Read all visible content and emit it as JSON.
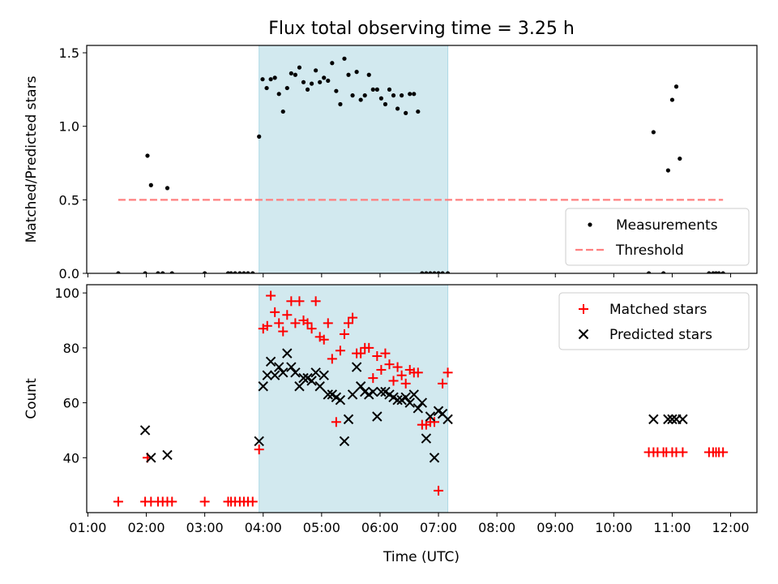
{
  "chart_data": {
    "type": "scatter",
    "title": "Flux total observing time = 3.25 h",
    "xlabel": "Time (UTC)",
    "xlim": [
      0.98,
      12.45
    ],
    "x_ticks": [
      1,
      2,
      3,
      4,
      5,
      6,
      7,
      8,
      9,
      10,
      11,
      12
    ],
    "x_tick_labels": [
      "01:00",
      "02:00",
      "03:00",
      "04:00",
      "05:00",
      "06:00",
      "07:00",
      "08:00",
      "09:00",
      "10:00",
      "11:00",
      "12:00"
    ],
    "observing_window": {
      "start": 3.93,
      "end": 7.16,
      "color": "#d2e9ef"
    },
    "panels": [
      {
        "ylabel": "Matched/Predicted stars",
        "ylim": [
          0,
          1.55
        ],
        "y_ticks": [
          0,
          0.5,
          1.0,
          1.5
        ],
        "y_tick_labels": [
          "0.0",
          "0.5",
          "1.0",
          "1.5"
        ],
        "legend": {
          "position": "bottom-right",
          "entries": [
            "Measurements",
            "Threshold"
          ]
        },
        "threshold": {
          "name": "Threshold",
          "value": 0.5,
          "x_range": [
            1.52,
            11.87
          ],
          "color": "#ff7f7f"
        },
        "series": [
          {
            "name": "Measurements",
            "marker": "dot",
            "color": "#000000",
            "x": [
              1.52,
              1.98,
              2.02,
              2.08,
              2.2,
              2.28,
              2.36,
              2.44,
              3.0,
              3.4,
              3.45,
              3.52,
              3.6,
              3.67,
              3.74,
              3.82,
              3.93,
              3.99,
              4.06,
              4.13,
              4.2,
              4.27,
              4.34,
              4.41,
              4.48,
              4.55,
              4.62,
              4.69,
              4.76,
              4.83,
              4.9,
              4.97,
              5.04,
              5.11,
              5.18,
              5.25,
              5.32,
              5.39,
              5.46,
              5.53,
              5.6,
              5.67,
              5.74,
              5.81,
              5.88,
              5.95,
              6.02,
              6.09,
              6.16,
              6.23,
              6.3,
              6.37,
              6.44,
              6.51,
              6.58,
              6.65,
              6.72,
              6.79,
              6.86,
              6.93,
              7.0,
              7.07,
              7.16,
              10.6,
              10.68,
              10.85,
              10.93,
              11.0,
              11.07,
              11.13,
              11.63,
              11.7,
              11.75,
              11.8,
              11.87
            ],
            "y": [
              0,
              0,
              0.8,
              0.6,
              0,
              0,
              0.58,
              0,
              0,
              0,
              0,
              0,
              0,
              0,
              0,
              0,
              0.93,
              1.32,
              1.26,
              1.32,
              1.33,
              1.22,
              1.1,
              1.26,
              1.36,
              1.35,
              1.4,
              1.3,
              1.25,
              1.29,
              1.38,
              1.3,
              1.33,
              1.31,
              1.43,
              1.24,
              1.15,
              1.46,
              1.35,
              1.21,
              1.37,
              1.18,
              1.21,
              1.35,
              1.25,
              1.25,
              1.19,
              1.15,
              1.25,
              1.21,
              1.12,
              1.21,
              1.09,
              1.22,
              1.22,
              1.1,
              0,
              0,
              0,
              0,
              0,
              0,
              0,
              0,
              0.96,
              0,
              0.7,
              1.18,
              1.27,
              0.78,
              0,
              0,
              0,
              0,
              0
            ]
          }
        ]
      },
      {
        "ylabel": "Count",
        "ylim": [
          20,
          103
        ],
        "y_ticks": [
          40,
          60,
          80,
          100
        ],
        "y_tick_labels": [
          "40",
          "60",
          "80",
          "100"
        ],
        "legend": {
          "position": "top-right",
          "entries": [
            "Matched stars",
            "Predicted stars"
          ]
        },
        "series": [
          {
            "name": "Matched stars",
            "marker": "plus",
            "color": "#ff0000",
            "x": [
              1.52,
              1.98,
              2.02,
              2.08,
              2.2,
              2.28,
              2.36,
              2.44,
              3.0,
              3.4,
              3.45,
              3.52,
              3.6,
              3.67,
              3.74,
              3.82,
              3.93,
              4.0,
              4.07,
              4.13,
              4.2,
              4.27,
              4.34,
              4.41,
              4.48,
              4.55,
              4.62,
              4.69,
              4.76,
              4.83,
              4.9,
              4.97,
              5.04,
              5.11,
              5.18,
              5.25,
              5.32,
              5.39,
              5.46,
              5.53,
              5.6,
              5.67,
              5.74,
              5.81,
              5.88,
              5.95,
              6.02,
              6.09,
              6.16,
              6.23,
              6.3,
              6.37,
              6.44,
              6.51,
              6.58,
              6.65,
              6.72,
              6.79,
              6.86,
              6.93,
              7.0,
              7.07,
              7.16,
              10.6,
              10.68,
              10.75,
              10.85,
              10.9,
              11.0,
              11.07,
              11.18,
              11.63,
              11.7,
              11.75,
              11.8,
              11.87
            ],
            "y": [
              24,
              24,
              40,
              24,
              24,
              24,
              24,
              24,
              24,
              24,
              24,
              24,
              24,
              24,
              24,
              24,
              43,
              87,
              88,
              99,
              93,
              89,
              86,
              92,
              97,
              89,
              97,
              90,
              89,
              87,
              97,
              84,
              83,
              89,
              76,
              53,
              79,
              85,
              89,
              91,
              78,
              78,
              80,
              80,
              69,
              77,
              72,
              78,
              74,
              68,
              73,
              70,
              67,
              72,
              71,
              71,
              52,
              52,
              53,
              53,
              28,
              67,
              71,
              42,
              42,
              42,
              42,
              42,
              42,
              42,
              42,
              42,
              42,
              42,
              42,
              42
            ],
            "y_note": "last 13 values after x=7.16 correspond to the late-evening cluster"
          },
          {
            "name": "Predicted stars",
            "marker": "x",
            "color": "#000000",
            "x": [
              1.98,
              2.08,
              2.36,
              3.93,
              4.0,
              4.07,
              4.13,
              4.2,
              4.27,
              4.34,
              4.41,
              4.48,
              4.55,
              4.62,
              4.69,
              4.76,
              4.83,
              4.9,
              4.97,
              5.04,
              5.11,
              5.18,
              5.25,
              5.32,
              5.39,
              5.46,
              5.53,
              5.6,
              5.67,
              5.74,
              5.81,
              5.88,
              5.95,
              6.02,
              6.09,
              6.16,
              6.23,
              6.3,
              6.37,
              6.44,
              6.51,
              6.58,
              6.65,
              6.72,
              6.79,
              6.86,
              6.93,
              7.0,
              7.07,
              7.16,
              10.68,
              10.93,
              11.0,
              11.07,
              11.18
            ],
            "y": [
              50,
              40,
              41,
              46,
              66,
              70,
              75,
              70,
              73,
              71,
              78,
              73,
              71,
              66,
              69,
              69,
              68,
              71,
              66,
              70,
              63,
              63,
              62,
              61,
              46,
              54,
              63,
              73,
              66,
              64,
              63,
              64,
              55,
              64,
              64,
              63,
              62,
              61,
              61,
              62,
              60,
              63,
              58,
              60,
              47,
              55,
              40,
              57,
              56,
              54,
              54,
              54,
              54,
              54,
              54
            ]
          }
        ]
      }
    ]
  }
}
